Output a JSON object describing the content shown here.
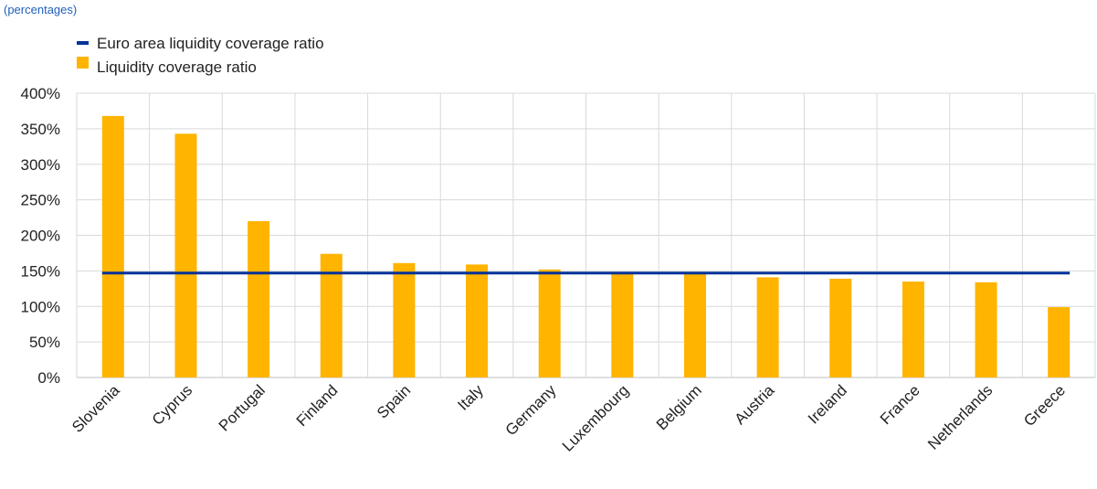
{
  "subtitle": "(percentages)",
  "colors": {
    "bar": "#FFB400",
    "line": "#003299",
    "grid": "#d9d9d9",
    "axis": "#bfbfbf",
    "text": "#222222",
    "subtitle": "#1f5fbf"
  },
  "chart_data": {
    "type": "bar",
    "categories": [
      "Slovenia",
      "Cyprus",
      "Portugal",
      "Finland",
      "Spain",
      "Italy",
      "Germany",
      "Luxembourg",
      "Belgium",
      "Austria",
      "Ireland",
      "France",
      "Netherlands",
      "Greece"
    ],
    "series": [
      {
        "name": "Liquidity coverage ratio",
        "type": "bar",
        "values": [
          368,
          343,
          220,
          174,
          161,
          159,
          152,
          148,
          146,
          141,
          139,
          135,
          134,
          99
        ]
      },
      {
        "name": "Euro area liquidity coverage ratio",
        "type": "line",
        "value": 147
      }
    ],
    "ylim": [
      0,
      400
    ],
    "yticks": [
      0,
      50,
      100,
      150,
      200,
      250,
      300,
      350,
      400
    ],
    "ytick_labels": [
      "0%",
      "50%",
      "100%",
      "150%",
      "200%",
      "250%",
      "300%",
      "350%",
      "400%"
    ],
    "legend": [
      {
        "label": "Euro area liquidity coverage ratio",
        "marker": "line"
      },
      {
        "label": "Liquidity coverage ratio",
        "marker": "bar"
      }
    ],
    "legend_position": "top-left",
    "grid": true
  }
}
